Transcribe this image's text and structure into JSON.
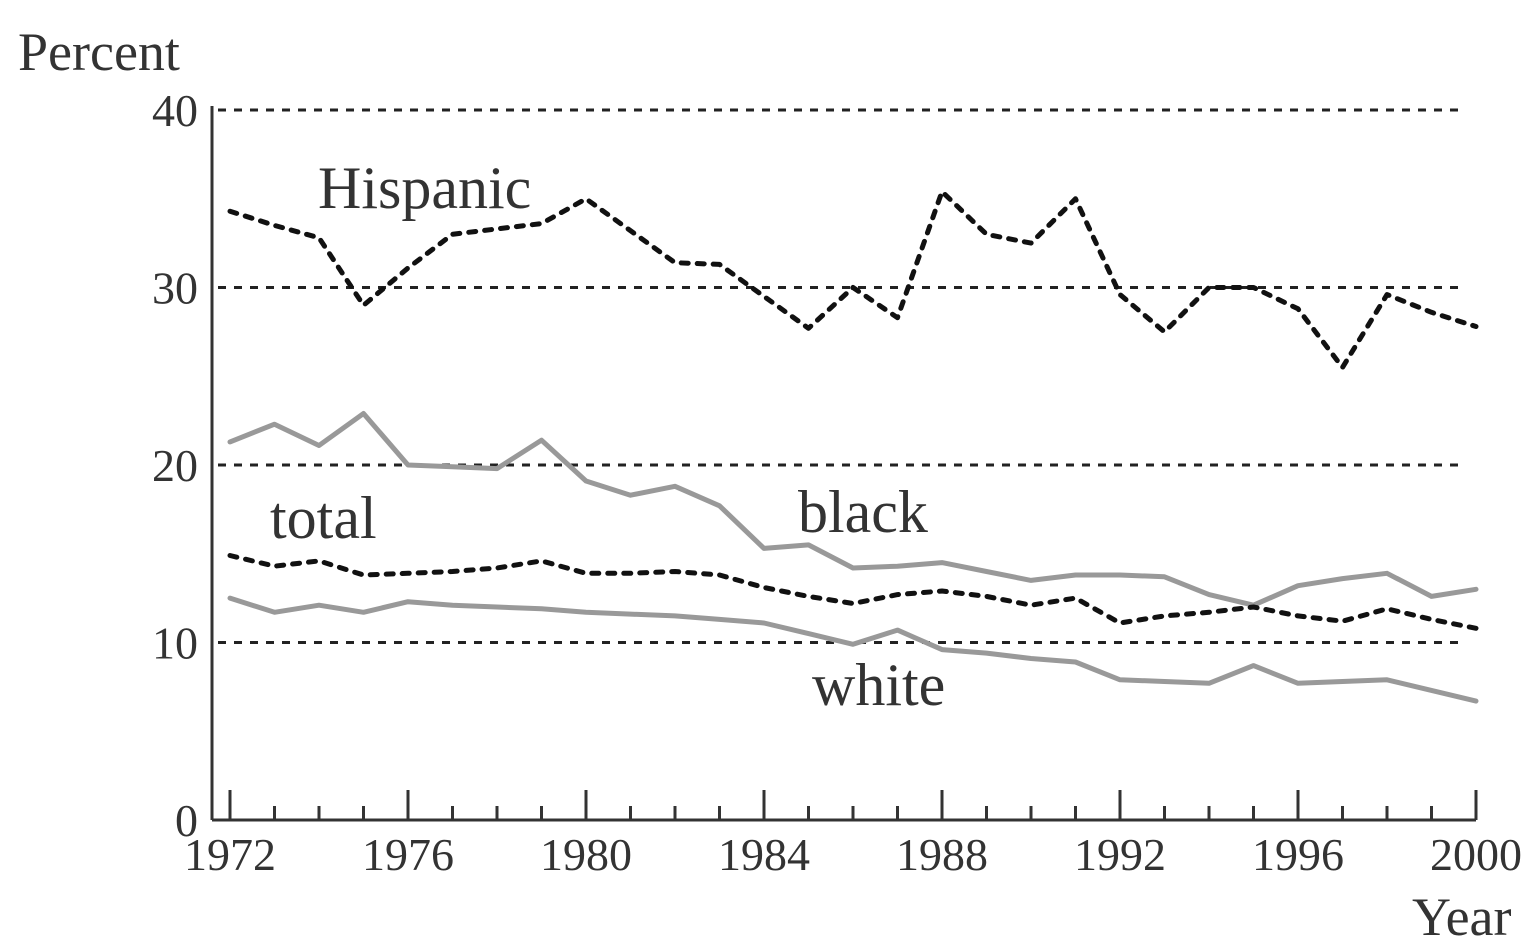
{
  "chart_data": {
    "type": "line",
    "title": "",
    "xlabel": "Year",
    "ylabel": "Percent",
    "xlim": [
      1972,
      2000
    ],
    "ylim": [
      0,
      40
    ],
    "x_tick_labels": [
      "1972",
      "1976",
      "1980",
      "1984",
      "1988",
      "1992",
      "1996",
      "2000"
    ],
    "y_tick_labels": [
      "0",
      "10",
      "20",
      "30",
      "40"
    ],
    "grid": "horizontal dashed at 10, 20, 30, 40",
    "legend": "none (series labeled directly on chart)",
    "x": [
      1972,
      1973,
      1974,
      1975,
      1976,
      1977,
      1978,
      1979,
      1980,
      1981,
      1982,
      1983,
      1984,
      1985,
      1986,
      1987,
      1988,
      1989,
      1990,
      1991,
      1992,
      1993,
      1994,
      1995,
      1996,
      1997,
      1998,
      1999,
      2000
    ],
    "series": [
      {
        "name": "Hispanic",
        "style": "dotted",
        "color": "#111111",
        "values": [
          34.3,
          33.5,
          32.8,
          29.0,
          31.1,
          33.0,
          33.3,
          33.6,
          35.0,
          33.2,
          31.4,
          31.3,
          29.5,
          27.7,
          30.0,
          28.3,
          35.4,
          33.0,
          32.5,
          35.0,
          29.6,
          27.5,
          30.0,
          30.0,
          28.8,
          25.5,
          29.6,
          28.6,
          27.8
        ]
      },
      {
        "name": "black",
        "style": "solid",
        "color": "#999999",
        "values": [
          21.3,
          22.3,
          21.1,
          22.9,
          20.0,
          19.9,
          19.8,
          21.4,
          19.1,
          18.3,
          18.8,
          17.7,
          15.3,
          15.5,
          14.2,
          14.3,
          14.5,
          14.0,
          13.5,
          13.8,
          13.8,
          13.7,
          12.7,
          12.1,
          13.2,
          13.6,
          13.9,
          12.6,
          13.0
        ]
      },
      {
        "name": "total",
        "style": "dotted",
        "color": "#111111",
        "values": [
          14.9,
          14.3,
          14.6,
          13.8,
          13.9,
          14.0,
          14.2,
          14.6,
          13.9,
          13.9,
          14.0,
          13.8,
          13.1,
          12.6,
          12.2,
          12.7,
          12.9,
          12.6,
          12.1,
          12.5,
          11.1,
          11.5,
          11.7,
          12.0,
          11.5,
          11.2,
          11.9,
          11.3,
          10.8
        ]
      },
      {
        "name": "white",
        "style": "solid",
        "color": "#999999",
        "values": [
          12.5,
          11.7,
          12.1,
          11.7,
          12.3,
          12.1,
          12.0,
          11.9,
          11.7,
          11.6,
          11.5,
          11.3,
          11.1,
          10.5,
          9.9,
          10.7,
          9.6,
          9.4,
          9.1,
          8.9,
          7.9,
          7.8,
          7.7,
          8.7,
          7.7,
          7.8,
          7.9,
          7.3,
          6.7
        ]
      }
    ]
  }
}
